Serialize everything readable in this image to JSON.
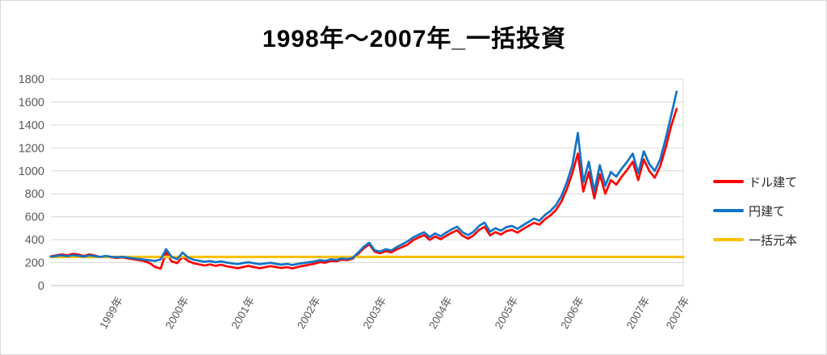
{
  "title": "1998年〜2007年_一括投資",
  "colors": {
    "background": "#FFFFFF",
    "border": "#D9D9D9",
    "grid": "#D9D9D9",
    "axis": "#BFBFBF",
    "tick_text": "#595959",
    "title_text": "#000000",
    "legend_text": "#262626",
    "red_series": "#FF0000",
    "blue_series": "#1273C6",
    "gold_series": "#FFC000"
  },
  "chart_data": {
    "type": "line",
    "title": "1998年〜2007年_一括投資",
    "grid": "horizontal",
    "legend_position": "right",
    "x_axis": {
      "min": 1998.0,
      "max": 2007.6,
      "ticks": [
        {
          "label": "1999年",
          "x": 1999
        },
        {
          "label": "2000年",
          "x": 2000
        },
        {
          "label": "2001年",
          "x": 2001
        },
        {
          "label": "2002年",
          "x": 2002
        },
        {
          "label": "2003年",
          "x": 2003
        },
        {
          "label": "2004年",
          "x": 2004
        },
        {
          "label": "2005年",
          "x": 2005
        },
        {
          "label": "2006年",
          "x": 2006
        },
        {
          "label": "2007年",
          "x": 2007
        },
        {
          "label": "2007年",
          "x": 2007.6
        }
      ]
    },
    "y_axis": {
      "min": 0,
      "max": 1800,
      "step": 200,
      "tick_labels": [
        "0",
        "200",
        "400",
        "600",
        "800",
        "1000",
        "1200",
        "1400",
        "1600",
        "1800"
      ]
    },
    "x_start": 1998.0,
    "x_step": 0.0833333,
    "series": [
      {
        "name": "ドル建て",
        "color": "#FF0000",
        "values": [
          255,
          263,
          272,
          264,
          277,
          270,
          258,
          272,
          262,
          248,
          255,
          246,
          242,
          246,
          238,
          230,
          222,
          214,
          196,
          162,
          148,
          290,
          210,
          196,
          250,
          215,
          195,
          185,
          175,
          185,
          172,
          182,
          168,
          160,
          152,
          162,
          172,
          162,
          152,
          160,
          170,
          162,
          153,
          160,
          150,
          163,
          172,
          182,
          190,
          205,
          200,
          215,
          212,
          226,
          222,
          235,
          278,
          325,
          360,
          295,
          282,
          300,
          290,
          315,
          336,
          358,
          396,
          420,
          440,
          398,
          428,
          404,
          434,
          460,
          482,
          434,
          410,
          438,
          486,
          512,
          438,
          466,
          446,
          476,
          486,
          462,
          492,
          520,
          548,
          530,
          578,
          612,
          658,
          732,
          840,
          980,
          1150,
          820,
          990,
          760,
          970,
          800,
          920,
          880,
          950,
          1010,
          1080,
          920,
          1100,
          1000,
          940,
          1040,
          1200,
          1390,
          1540
        ]
      },
      {
        "name": "円建て",
        "color": "#1273C6",
        "values": [
          252,
          258,
          264,
          256,
          266,
          260,
          253,
          264,
          257,
          250,
          259,
          251,
          247,
          251,
          244,
          238,
          232,
          226,
          221,
          215,
          228,
          318,
          250,
          230,
          288,
          244,
          226,
          216,
          208,
          214,
          204,
          211,
          201,
          194,
          188,
          197,
          204,
          195,
          187,
          193,
          199,
          190,
          183,
          189,
          180,
          190,
          197,
          204,
          210,
          223,
          216,
          229,
          224,
          236,
          231,
          242,
          288,
          338,
          374,
          308,
          296,
          318,
          305,
          336,
          360,
          387,
          420,
          444,
          465,
          423,
          455,
          430,
          462,
          490,
          514,
          465,
          440,
          470,
          520,
          549,
          470,
          500,
          479,
          510,
          520,
          495,
          525,
          555,
          584,
          565,
          615,
          650,
          700,
          780,
          900,
          1050,
          1330,
          900,
          1080,
          820,
          1050,
          870,
          990,
          950,
          1020,
          1080,
          1150,
          980,
          1170,
          1060,
          1000,
          1100,
          1280,
          1480,
          1690
        ]
      },
      {
        "name": "一括元本",
        "color": "#FFC000",
        "constant": 250
      }
    ]
  }
}
